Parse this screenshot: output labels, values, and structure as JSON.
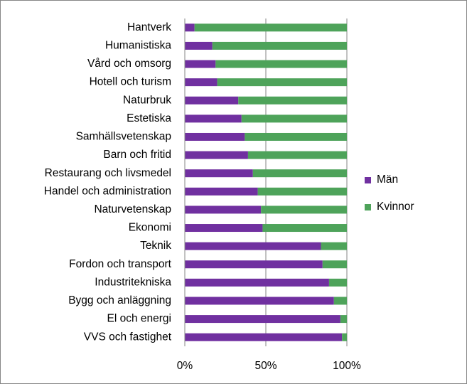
{
  "chart_data": {
    "type": "stacked-barh",
    "categories": [
      "Hantverk",
      "Humanistiska",
      "Vård och omsorg",
      "Hotell och turism",
      "Naturbruk",
      "Estetiska",
      "Samhällsvetenskap",
      "Barn och fritid",
      "Restaurang och livsmedel",
      "Handel och administration",
      "Naturvetenskap",
      "Ekonomi",
      "Teknik",
      "Fordon och transport",
      "Industritekniska",
      "Bygg och anläggning",
      "El och energi",
      "VVS och fastighet"
    ],
    "series": [
      {
        "name": "Män",
        "color": "#7030a0",
        "values": [
          6,
          17,
          19,
          20,
          33,
          35,
          37,
          39,
          42,
          45,
          47,
          48,
          84,
          85,
          89,
          92,
          96,
          97
        ]
      },
      {
        "name": "Kvinnor",
        "color": "#4ea35a",
        "values": [
          94,
          83,
          81,
          80,
          67,
          65,
          63,
          61,
          58,
          55,
          53,
          52,
          16,
          15,
          11,
          8,
          4,
          3
        ]
      }
    ],
    "xlim": [
      0,
      100
    ],
    "xticks": [
      {
        "value": 0,
        "label": "0%"
      },
      {
        "value": 50,
        "label": "50%"
      },
      {
        "value": 100,
        "label": "100%"
      }
    ],
    "grid": true,
    "legend": "right"
  }
}
